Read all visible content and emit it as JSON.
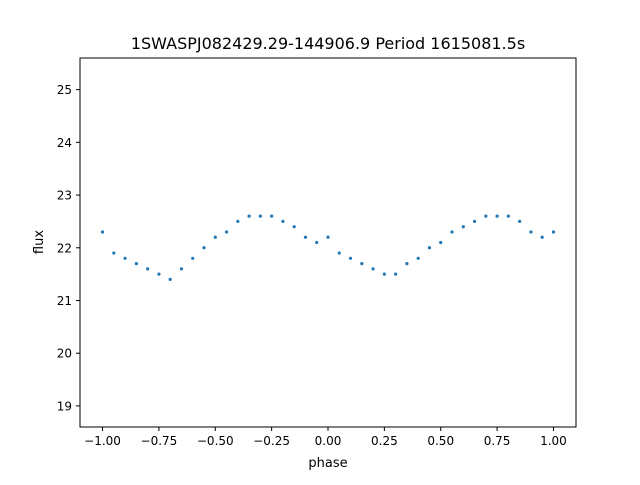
{
  "chart_data": {
    "type": "scatter",
    "title": "1SWASPJ082429.29-144906.9 Period 1615081.5s",
    "xlabel": "phase",
    "ylabel": "flux",
    "xlim": [
      -1.1,
      1.1
    ],
    "ylim": [
      18.6,
      25.6
    ],
    "xticks": [
      -1.0,
      -0.75,
      -0.5,
      -0.25,
      0.0,
      0.25,
      0.5,
      0.75,
      1.0
    ],
    "xtick_labels": [
      "−1.00",
      "−0.75",
      "−0.50",
      "−0.25",
      "0.00",
      "0.25",
      "0.50",
      "0.75",
      "1.00"
    ],
    "yticks": [
      19,
      20,
      21,
      22,
      23,
      24,
      25
    ],
    "ytick_labels": [
      "19",
      "20",
      "21",
      "22",
      "23",
      "24",
      "25"
    ],
    "grid": false,
    "legend": "none",
    "marker_color": "#1f77b4",
    "series": [
      {
        "x": [
          -1.0,
          -0.95,
          -0.9,
          -0.85,
          -0.8,
          -0.75,
          -0.7,
          -0.65,
          -0.6,
          -0.55,
          -0.5,
          -0.45,
          -0.4,
          -0.35,
          -0.3,
          -0.25,
          -0.2,
          -0.15,
          -0.1,
          -0.05,
          0.0,
          0.05,
          0.1,
          0.15,
          0.2,
          0.25,
          0.3,
          0.35,
          0.4,
          0.45,
          0.5,
          0.55,
          0.6,
          0.65,
          0.7,
          0.75,
          0.8,
          0.85,
          0.9,
          0.95,
          1.0
        ],
        "y": [
          22.3,
          21.9,
          21.8,
          21.7,
          21.6,
          21.5,
          21.4,
          21.6,
          21.8,
          22.0,
          22.2,
          22.3,
          22.5,
          22.6,
          22.6,
          22.6,
          22.5,
          22.4,
          22.2,
          22.1,
          22.2,
          21.9,
          21.8,
          21.7,
          21.6,
          21.5,
          21.5,
          21.7,
          21.8,
          22.0,
          22.1,
          22.3,
          22.4,
          22.5,
          22.6,
          22.6,
          22.6,
          22.5,
          22.3,
          22.2,
          22.3
        ]
      }
    ]
  }
}
